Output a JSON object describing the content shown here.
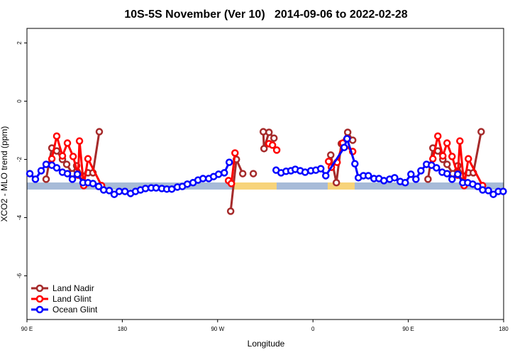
{
  "chart_data": {
    "type": "line",
    "title": "10S-5S November (Ver 10)   2014-09-06 to 2022-02-28",
    "xlabel": "Longitude",
    "ylabel": "XCO2 - MLO trend (ppm)",
    "xlim": [
      90,
      540
    ],
    "ylim": [
      -7.5,
      2.5
    ],
    "xticks": [
      {
        "value": 90,
        "label": "90 E"
      },
      180,
      {
        "value": 270,
        "label": "90 W"
      },
      {
        "value": 360,
        "label": "0"
      },
      {
        "value": 450,
        "label": "90 E"
      },
      {
        "value": 540,
        "label": "180"
      }
    ],
    "yticks": [
      2,
      0,
      -2,
      -4,
      -6
    ],
    "legend": "bottom-left",
    "series": [
      {
        "name": "Land Nadir",
        "color": "#a52a2a",
        "x": [
          108.1,
          113.5,
          118.1,
          123.5,
          127.5,
          132.9,
          136.9,
          142.3,
          147.6,
          152.3,
          158.3,
          null,
          282.3,
          287.7,
          293.7,
          null,
          303.7,
          null,
          313.1,
          313.8,
          318.5,
          323.2,
          null,
          376.8,
          382.1,
          386.8,
          392.8,
          397.5,
          null,
          468.6,
          473.2,
          477.9,
          482.6,
          486.6,
          492,
          496.7,
          501.4,
          506.7,
          511.4,
          518.8
        ],
        "values": [
          -2.68,
          -1.61,
          -1.71,
          -2.0,
          -2.17,
          -2.49,
          -2.22,
          -2.56,
          -2.46,
          -2.46,
          -1.05,
          null,
          -3.78,
          -2.0,
          -2.49,
          null,
          -2.49,
          null,
          -1.05,
          -1.63,
          -1.07,
          -1.27,
          null,
          -1.85,
          -2.8,
          -1.46,
          -1.07,
          -1.34,
          null,
          -2.68,
          -1.61,
          -1.71,
          -2.0,
          -2.17,
          -2.49,
          -2.22,
          -2.56,
          -2.46,
          -2.46,
          -1.05
        ]
      },
      {
        "name": "Land Glint",
        "color": "#ff0000",
        "x": [
          113.5,
          118.1,
          123.5,
          128.2,
          133.6,
          138.3,
          139.6,
          143.6,
          147.6,
          160.4,
          null,
          280.3,
          283,
          286.4,
          null,
          318.5,
          321.8,
          325.8,
          null,
          374.8,
          377.4,
          382.8,
          388.2,
          397.5,
          null,
          473.2,
          477.9,
          482.6,
          486.6,
          491.3,
          496.7,
          498.7,
          502.7,
          506.7,
          520.1
        ],
        "values": [
          -1.98,
          -1.2,
          -1.88,
          -1.44,
          -1.9,
          -2.54,
          -1.37,
          -2.9,
          -1.98,
          -2.9,
          null,
          -2.73,
          -2.83,
          -1.78,
          null,
          -1.46,
          -1.51,
          -1.68,
          null,
          -2.07,
          -2.27,
          -2.1,
          -1.44,
          -1.73,
          null,
          -1.98,
          -1.2,
          -1.88,
          -1.44,
          -1.9,
          -2.54,
          -1.37,
          -2.9,
          -1.98,
          -2.9
        ]
      },
      {
        "name": "Ocean Glint",
        "color": "#0000ff",
        "x": [
          92.7,
          98,
          103.4,
          108.1,
          113.5,
          118.1,
          123.5,
          128.2,
          132.9,
          137.6,
          142.9,
          147.6,
          152.3,
          157.7,
          162.4,
          167.7,
          172.4,
          177.1,
          182.5,
          187.8,
          192.5,
          197.2,
          201.9,
          207.3,
          211.9,
          217.3,
          222,
          226.7,
          232,
          236.7,
          241.4,
          246.8,
          251.5,
          256.2,
          261.6,
          266.2,
          270.9,
          276.3,
          281,
          null,
          325.2,
          329.9,
          334.6,
          339.2,
          343.3,
          348,
          352.6,
          358,
          362.7,
          367.4,
          372.1,
          389.5,
          392.2,
          399.6,
          402.9,
          407.6,
          412.3,
          417.6,
          422.3,
          427,
          432.4,
          437.1,
          442.4,
          447.1,
          452.5,
          457.2,
          461.9,
          467.2,
          471.9,
          476.6,
          482,
          486.6,
          491.3,
          496.7,
          501.4,
          506.1,
          510.8,
          515.5,
          520.2,
          525.6,
          530.3,
          535,
          539.6
        ],
        "values": [
          -2.49,
          -2.68,
          -2.39,
          -2.17,
          -2.2,
          -2.29,
          -2.44,
          -2.49,
          -2.68,
          -2.51,
          -2.8,
          -2.8,
          -2.83,
          -2.93,
          -3.05,
          -3.07,
          -3.2,
          -3.1,
          -3.1,
          -3.17,
          -3.1,
          -3.05,
          -3.0,
          -2.98,
          -2.98,
          -3.0,
          -3.02,
          -3.02,
          -2.95,
          -2.93,
          -2.85,
          -2.8,
          -2.71,
          -2.66,
          -2.66,
          -2.59,
          -2.51,
          -2.46,
          -2.1,
          null,
          -2.37,
          -2.46,
          -2.41,
          -2.39,
          -2.34,
          -2.39,
          -2.44,
          -2.39,
          -2.37,
          -2.32,
          -2.56,
          -1.59,
          -1.29,
          -2.15,
          -2.63,
          -2.56,
          -2.56,
          -2.66,
          -2.66,
          -2.73,
          -2.68,
          -2.63,
          -2.76,
          -2.8,
          -2.51,
          -2.68,
          -2.39,
          -2.17,
          -2.2,
          -2.29,
          -2.44,
          -2.49,
          -2.68,
          -2.51,
          -2.8,
          -2.8,
          -2.85,
          -2.93,
          -3.05,
          -3.07,
          -3.2,
          -3.1,
          -3.1
        ]
      }
    ]
  }
}
